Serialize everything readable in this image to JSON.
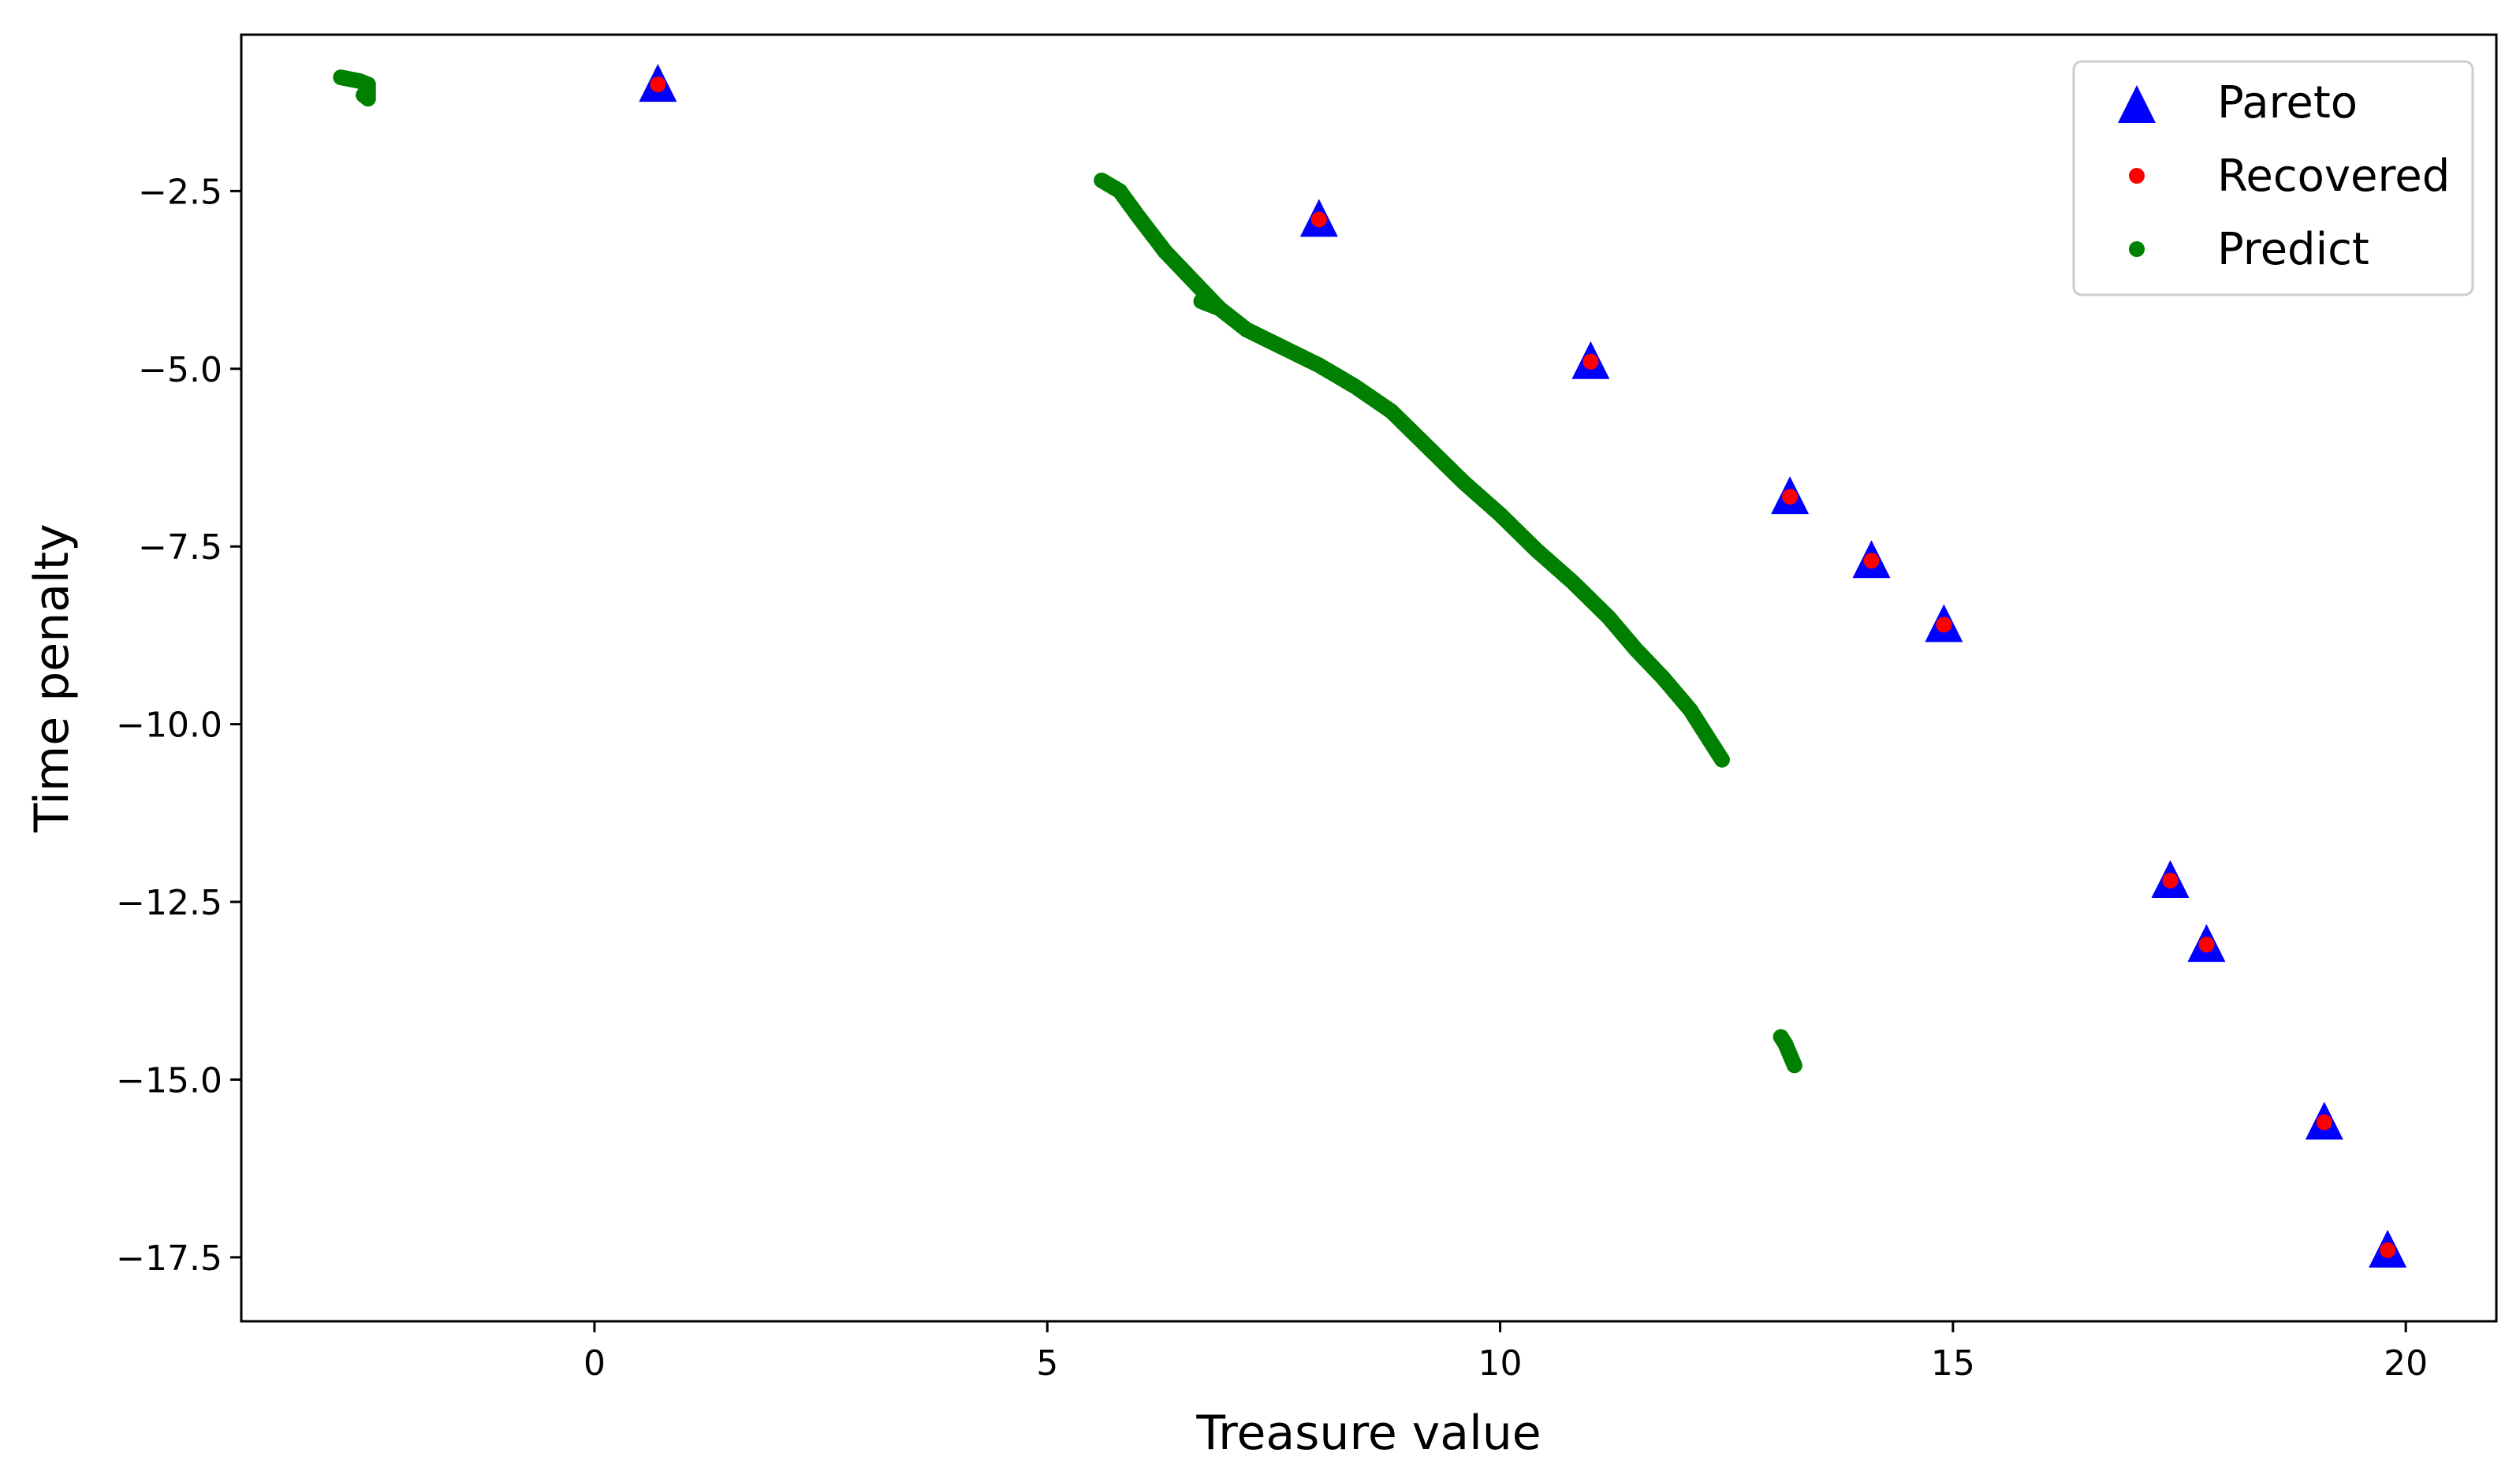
{
  "chart_data": {
    "type": "scatter",
    "title": "",
    "xlabel": "Treasure value",
    "ylabel": "Time penalty",
    "xlim": [
      -3.9,
      21.0
    ],
    "ylim": [
      -18.4,
      -0.3
    ],
    "x_ticks": [
      0,
      5,
      10,
      15,
      20
    ],
    "x_tick_labels": [
      "0",
      "5",
      "10",
      "15",
      "20"
    ],
    "y_ticks": [
      -2.5,
      -5.0,
      -7.5,
      -10.0,
      -12.5,
      -15.0,
      -17.5
    ],
    "y_tick_labels": [
      "−2.5",
      "−5.0",
      "−7.5",
      "−10.0",
      "−12.5",
      "−15.0",
      "−17.5"
    ],
    "grid": false,
    "legend_position": "top-right",
    "series": [
      {
        "name": "Pareto",
        "marker": "triangle",
        "color": "#0000ff",
        "x": [
          0.7,
          8.0,
          11.0,
          13.2,
          14.1,
          14.9,
          17.4,
          17.8,
          19.1,
          19.8
        ],
        "y": [
          -1.0,
          -2.9,
          -4.9,
          -6.8,
          -7.7,
          -8.6,
          -12.2,
          -13.1,
          -15.6,
          -17.4
        ]
      },
      {
        "name": "Recovered",
        "marker": "dot",
        "color": "#ff0000",
        "x": [
          0.7,
          8.0,
          11.0,
          13.2,
          14.1,
          14.9,
          17.4,
          17.8,
          19.1,
          19.8
        ],
        "y": [
          -1.0,
          -2.9,
          -4.9,
          -6.8,
          -7.7,
          -8.6,
          -12.2,
          -13.1,
          -15.6,
          -17.4
        ]
      },
      {
        "name": "Predict",
        "marker": "dot",
        "color": "#008000",
        "segments": [
          {
            "x": [
              -2.8,
              -2.6,
              -2.5,
              -2.5,
              -2.55
            ],
            "y": [
              -0.9,
              -0.95,
              -1.0,
              -1.2,
              -1.15
            ]
          },
          {
            "x": [
              5.6,
              5.8,
              6.0,
              6.3,
              6.6,
              6.9,
              7.2,
              7.6,
              8.0,
              8.4,
              8.8,
              9.2,
              9.6,
              10.0,
              10.4,
              10.8,
              11.2,
              11.5,
              11.8,
              12.1,
              12.3,
              12.45
            ],
            "y": [
              -2.35,
              -2.5,
              -2.85,
              -3.35,
              -3.75,
              -4.15,
              -4.45,
              -4.7,
              -4.95,
              -5.25,
              -5.6,
              -6.1,
              -6.6,
              -7.05,
              -7.55,
              -8.0,
              -8.5,
              -8.95,
              -9.35,
              -9.8,
              -10.2,
              -10.5
            ]
          },
          {
            "x": [
              6.7,
              6.8,
              6.9
            ],
            "y": [
              -4.05,
              -4.1,
              -4.15
            ]
          },
          {
            "x": [
              13.1,
              13.15,
              13.2,
              13.25
            ],
            "y": [
              -14.4,
              -14.5,
              -14.65,
              -14.8
            ]
          }
        ]
      }
    ]
  }
}
